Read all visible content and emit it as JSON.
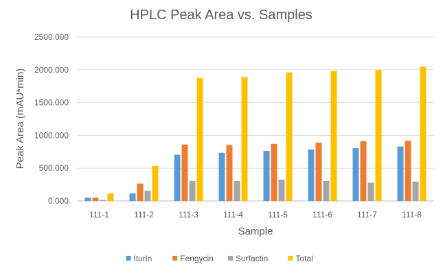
{
  "chart_data": {
    "type": "bar",
    "title": "HPLC Peak Area vs. Samples",
    "xlabel": "Sample",
    "ylabel": "Peak Area (mAU*min)",
    "ylim": [
      0,
      2500
    ],
    "yticks": [
      "0.000",
      "500.000",
      "1000.000",
      "1500.000",
      "2000.000",
      "2500.000"
    ],
    "categories": [
      "111-1",
      "111-2",
      "111-3",
      "111-4",
      "111-5",
      "111-6",
      "111-7",
      "111-8"
    ],
    "grid": true,
    "legend_position": "bottom",
    "series": [
      {
        "name": "Iturin",
        "color": "#5B9BD5",
        "values": [
          50,
          115,
          705,
          735,
          765,
          785,
          805,
          830
        ]
      },
      {
        "name": "Fengycin",
        "color": "#ED7D31",
        "values": [
          50,
          265,
          860,
          855,
          870,
          890,
          910,
          920
        ]
      },
      {
        "name": "Surfactin",
        "color": "#A5A5A5",
        "values": [
          15,
          155,
          305,
          305,
          325,
          305,
          280,
          295
        ]
      },
      {
        "name": "Total",
        "color": "#FFC000",
        "values": [
          115,
          535,
          1875,
          1890,
          1960,
          1980,
          1995,
          2045
        ]
      }
    ]
  }
}
